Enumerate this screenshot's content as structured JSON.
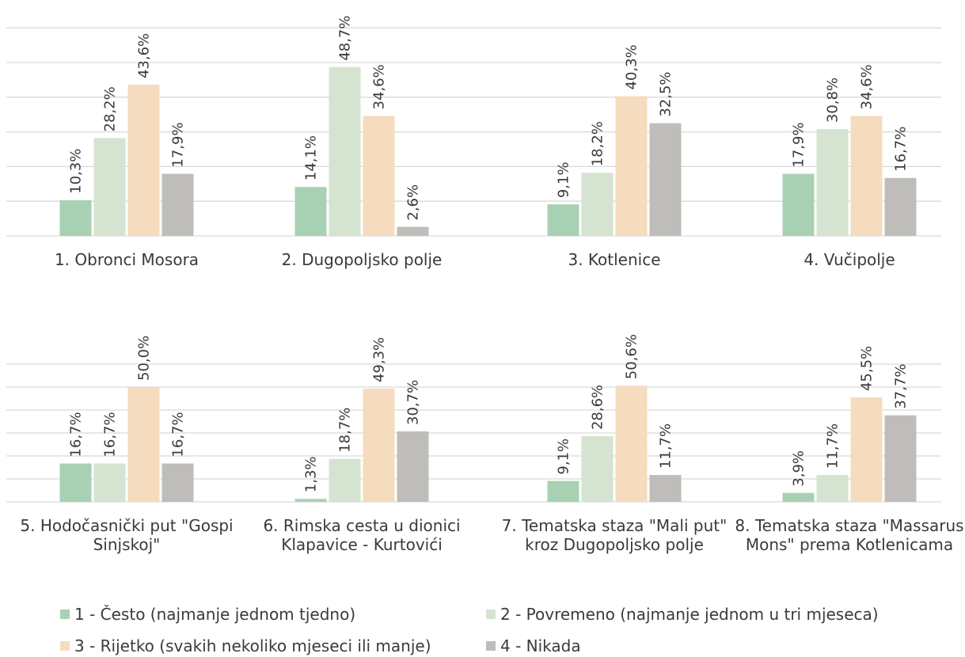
{
  "chart_data": [
    {
      "type": "bar",
      "categories": [
        "1. Obronci Mosora",
        "2. Dugopoljsko polje",
        "3. Kotlenice",
        "4. Vučipolje"
      ],
      "series": [
        {
          "name": "1 - Često (najmanje jednom tjedno)",
          "values": [
            10.3,
            14.1,
            9.1,
            17.9
          ],
          "labels": [
            "10,3%",
            "14,1%",
            "9,1%",
            "17,9%"
          ]
        },
        {
          "name": "2 - Povremeno (najmanje jednom u tri mjeseca)",
          "values": [
            28.2,
            48.7,
            18.2,
            30.8
          ],
          "labels": [
            "28,2%",
            "48,7%",
            "18,2%",
            "30,8%"
          ]
        },
        {
          "name": "3 - Rijetko (svakih nekoliko mjeseci ili manje)",
          "values": [
            43.6,
            34.6,
            40.3,
            34.6
          ],
          "labels": [
            "43,6%",
            "34,6%",
            "40,3%",
            "34,6%"
          ]
        },
        {
          "name": "4 - Nikada",
          "values": [
            17.9,
            2.6,
            32.5,
            16.7
          ],
          "labels": [
            "17,9%",
            "2,6%",
            "32,5%",
            "16,7%"
          ]
        }
      ],
      "ylim": [
        0,
        60
      ],
      "grid": true
    },
    {
      "type": "bar",
      "categories": [
        "5. Hodočasnički put \"Gospi Sinjskoj\"",
        "6. Rimska cesta u dionici Klapavice - Kurtovići",
        "7. Tematska staza \"Mali put\" kroz Dugopoljsko polje",
        "8. Tematska staza \"Massarus Mons\" prema Kotlenicama"
      ],
      "series": [
        {
          "name": "1 - Često (najmanje jednom tjedno)",
          "values": [
            16.7,
            1.3,
            9.1,
            3.9
          ],
          "labels": [
            "16,7%",
            "1,3%",
            "9,1%",
            "3,9%"
          ]
        },
        {
          "name": "2 - Povremeno (najmanje jednom u tri mjeseca)",
          "values": [
            16.7,
            18.7,
            28.6,
            11.7
          ],
          "labels": [
            "16,7%",
            "18,7%",
            "28,6%",
            "11,7%"
          ]
        },
        {
          "name": "3 - Rijetko (svakih nekoliko mjeseci ili manje)",
          "values": [
            50.0,
            49.3,
            50.6,
            45.5
          ],
          "labels": [
            "50,0%",
            "49,3%",
            "50,6%",
            "45,5%"
          ]
        },
        {
          "name": "4 - Nikada",
          "values": [
            16.7,
            30.7,
            11.7,
            37.7
          ],
          "labels": [
            "16,7%",
            "30,7%",
            "11,7%",
            "37,7%"
          ]
        }
      ],
      "ylim": [
        0,
        60
      ],
      "grid": true
    }
  ],
  "colors": {
    "series": [
      "#a8d1b4",
      "#d5e4d0",
      "#f5dcbf",
      "#bfbdba"
    ],
    "grid": "#d9d9d9",
    "text": "#3a3a3a"
  },
  "legend": {
    "placement": "bottom",
    "items": [
      {
        "label": "1 - Često (najmanje jednom tjedno)",
        "color": "#a8d1b4"
      },
      {
        "label": "2 - Povremeno (najmanje jednom u tri mjeseca)",
        "color": "#d5e4d0"
      },
      {
        "label": "3 - Rijetko (svakih nekoliko mjeseci ili manje)",
        "color": "#f5dcbf"
      },
      {
        "label": "4 - Nikada",
        "color": "#bfbdba"
      }
    ]
  }
}
